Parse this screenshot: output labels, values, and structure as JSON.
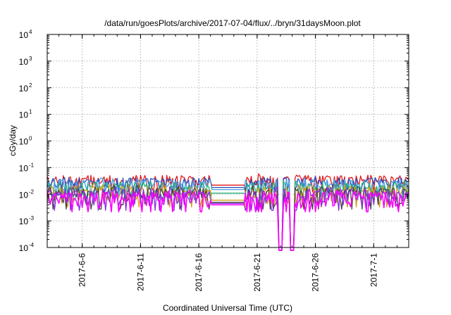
{
  "chart_data": {
    "type": "line",
    "title": "/data/run/goesPlots/archive/2017-07-04/flux/../bryn/31daysMoon.plot",
    "xlabel": "Coordinated Universal Time (UTC)",
    "ylabel": "cGy/day",
    "y_scale": "log",
    "ylim": [
      0.0001,
      10000
    ],
    "xlim": [
      "2017-06-03",
      "2017-07-04"
    ],
    "y_ticks": [
      {
        "base": "10",
        "exp": "-4",
        "value": 0.0001
      },
      {
        "base": "10",
        "exp": "-3",
        "value": 0.001
      },
      {
        "base": "10",
        "exp": "-2",
        "value": 0.01
      },
      {
        "base": "10",
        "exp": "-1",
        "value": 0.1
      },
      {
        "base": "10",
        "exp": "0",
        "value": 1
      },
      {
        "base": "10",
        "exp": "1",
        "value": 10
      },
      {
        "base": "10",
        "exp": "2",
        "value": 100
      },
      {
        "base": "10",
        "exp": "3",
        "value": 1000
      },
      {
        "base": "10",
        "exp": "4",
        "value": 10000
      }
    ],
    "x_ticks": [
      {
        "label": "2017-6-6",
        "date": "2017-06-06"
      },
      {
        "label": "2017-6-11",
        "date": "2017-06-11"
      },
      {
        "label": "2017-6-16",
        "date": "2017-06-16"
      },
      {
        "label": "2017-6-21",
        "date": "2017-06-21"
      },
      {
        "label": "2017-6-26",
        "date": "2017-06-26"
      },
      {
        "label": "2017-7-1",
        "date": "2017-07-01"
      }
    ],
    "grid": true,
    "legend": "none",
    "data_gap": [
      "2017-06-17",
      "2017-06-20"
    ],
    "dropout_dates": [
      "2017-06-23",
      "2017-06-24"
    ],
    "series": [
      {
        "color": "#e41a1c",
        "baseline": 0.022,
        "peak": 0.05
      },
      {
        "color": "#2a4fbf",
        "baseline": 0.018,
        "peak": 0.04
      },
      {
        "color": "#4aa3e0",
        "baseline": 0.015,
        "peak": 0.035
      },
      {
        "color": "#2ab07a",
        "baseline": 0.011,
        "peak": 0.028
      },
      {
        "color": "#d4a017",
        "baseline": 0.006,
        "peak": 0.02
      },
      {
        "color": "#444444",
        "baseline": 0.005,
        "peak": 0.018
      },
      {
        "color": "#8a2be2",
        "baseline": 0.0045,
        "peak": 0.016
      },
      {
        "color": "#ff00ff",
        "baseline": 0.004,
        "peak": 0.012
      }
    ]
  }
}
